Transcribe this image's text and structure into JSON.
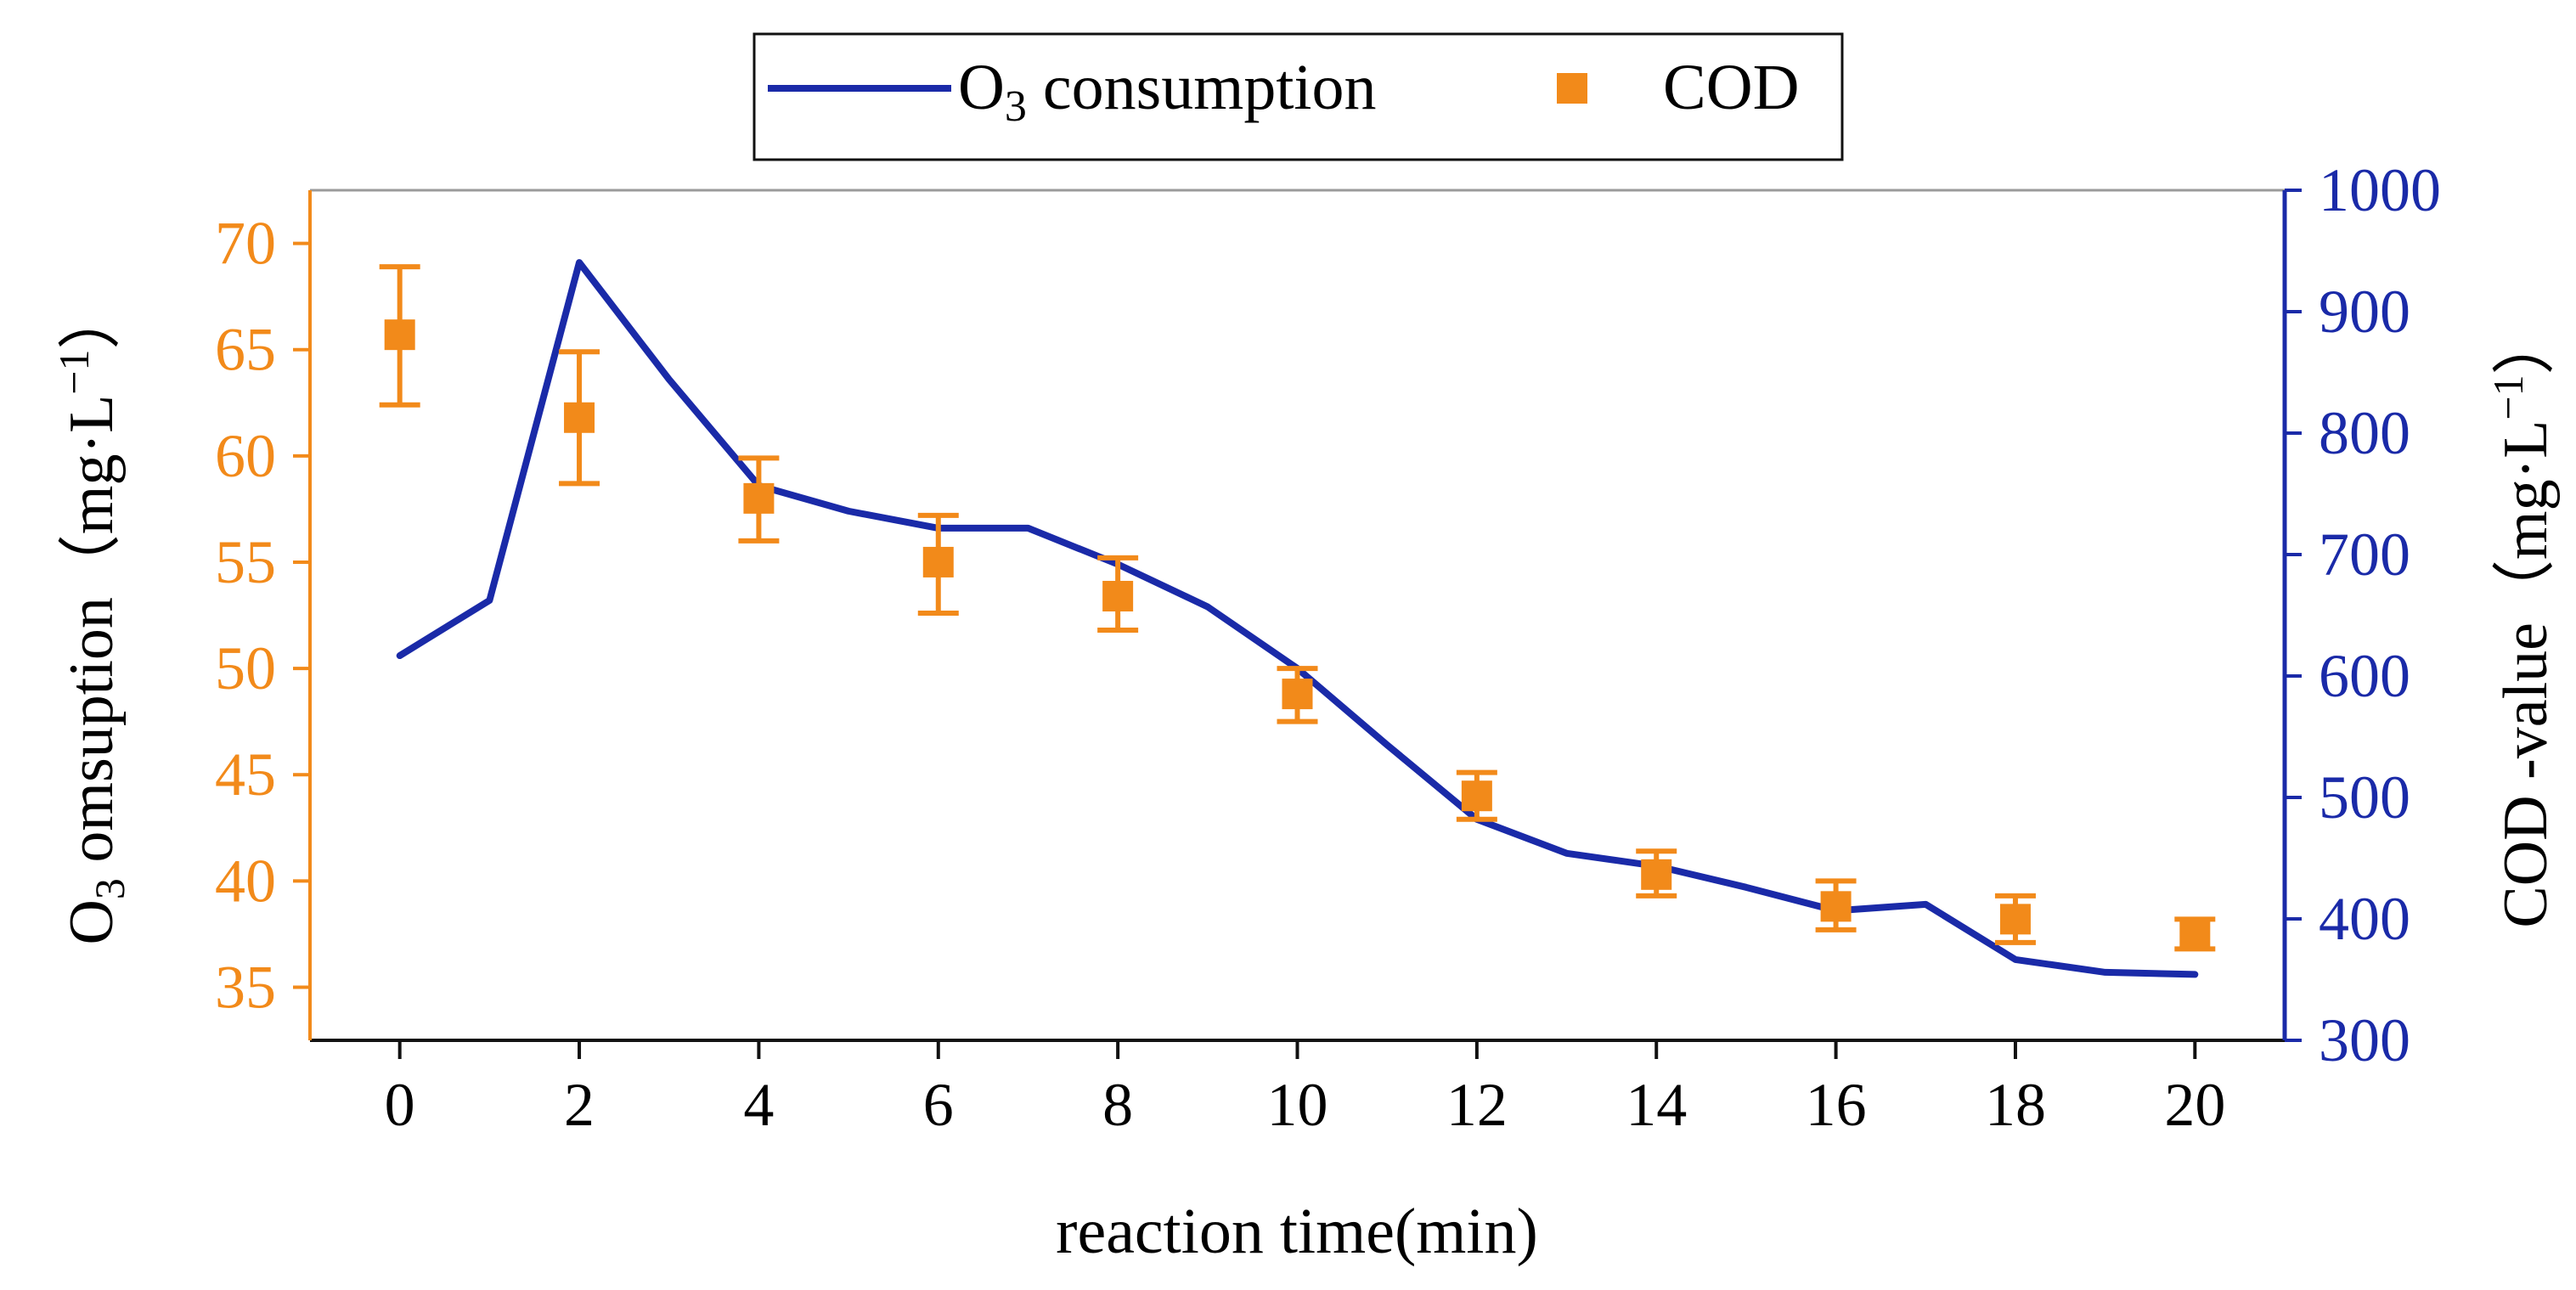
{
  "chart_data": {
    "type": "line",
    "title": "",
    "xlabel": "reaction time(min)",
    "x_ticks": [
      "0",
      "2",
      "4",
      "6",
      "8",
      "10",
      "12",
      "14",
      "16",
      "18",
      "20"
    ],
    "xlim": [
      -1,
      21
    ],
    "left_axis": {
      "label_main": "O",
      "label_sub": "3",
      "label_rest": " omsuption",
      "unit_open": "（",
      "unit_text": "mg·L",
      "unit_sup": "−1",
      "unit_close": "）",
      "ylim": [
        32.5,
        72.5
      ],
      "ticks": [
        "35",
        "40",
        "45",
        "50",
        "55",
        "60",
        "65",
        "70"
      ],
      "color": "#F28A1A"
    },
    "right_axis": {
      "label_text": "COD -value",
      "unit_open": "（",
      "unit_text": "mg·L",
      "unit_sup": "−1",
      "unit_close": "）",
      "ylim": [
        300,
        1000
      ],
      "ticks": [
        "300",
        "400",
        "500",
        "600",
        "700",
        "800",
        "900",
        "1000"
      ],
      "color": "#1A2AA8"
    },
    "series": [
      {
        "name": "O3 consumption",
        "kind": "line",
        "axis": "left",
        "color": "#1A2AA8",
        "x": [
          0,
          1,
          2,
          3,
          4,
          5,
          6,
          7,
          8,
          9,
          10,
          11,
          12,
          13,
          14,
          15,
          16,
          17,
          18,
          19,
          20
        ],
        "values": [
          50.6,
          53.2,
          69.1,
          63.6,
          58.6,
          57.4,
          56.6,
          56.6,
          54.9,
          52.9,
          50.0,
          46.4,
          42.9,
          41.3,
          40.7,
          39.7,
          38.6,
          38.9,
          36.3,
          35.7,
          35.6
        ]
      },
      {
        "name": "COD",
        "kind": "scatter",
        "axis": "left",
        "color": "#F28A1A",
        "x": [
          0,
          2,
          4,
          6,
          8,
          10,
          12,
          14,
          16,
          18,
          20
        ],
        "values": [
          65.7,
          61.8,
          58.0,
          55.0,
          53.4,
          48.8,
          44.0,
          40.3,
          38.8,
          38.2,
          37.5
        ],
        "err_low": [
          62.4,
          58.7,
          56.0,
          52.6,
          51.8,
          47.5,
          42.9,
          39.3,
          37.7,
          37.1,
          36.8
        ],
        "err_high": [
          68.9,
          64.9,
          59.9,
          57.2,
          55.2,
          50.0,
          45.1,
          41.4,
          40.0,
          39.3,
          38.2
        ]
      }
    ],
    "legend": {
      "position": "top-center",
      "items": [
        {
          "label_main": "O",
          "label_sub": "3",
          "label_rest": " consumption"
        },
        {
          "label_main": "COD"
        }
      ]
    }
  }
}
